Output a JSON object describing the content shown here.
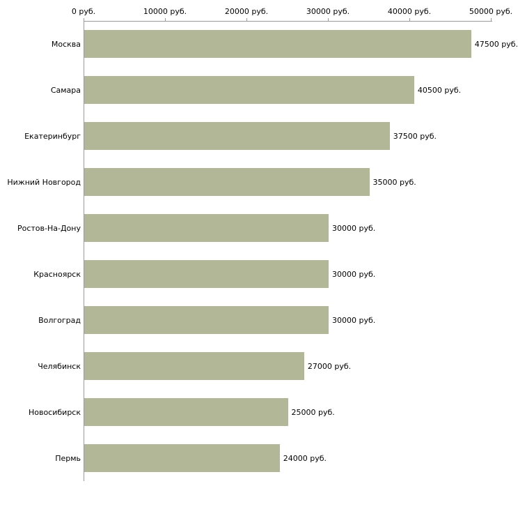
{
  "chart_data": {
    "type": "bar",
    "orientation": "horizontal",
    "title": "",
    "xlabel": "",
    "ylabel": "",
    "categories": [
      "Москва",
      "Самара",
      "Екатеринбург",
      "Нижний Новгород",
      "Ростов-На-Дону",
      "Красноярск",
      "Волгоград",
      "Челябинск",
      "Новосибирск",
      "Пермь"
    ],
    "values": [
      47500,
      40500,
      37500,
      35000,
      30000,
      30000,
      30000,
      27000,
      25000,
      24000
    ],
    "value_labels": [
      "47500 руб.",
      "40500 руб.",
      "37500 руб.",
      "35000 руб.",
      "30000 руб.",
      "30000 руб.",
      "30000 руб.",
      "27000 руб.",
      "25000 руб.",
      "24000 руб."
    ],
    "x_ticks": [
      0,
      10000,
      20000,
      30000,
      40000,
      50000
    ],
    "x_tick_labels": [
      "0 руб.",
      "10000 руб.",
      "20000 руб.",
      "30000 руб.",
      "40000 руб.",
      "50000 руб."
    ],
    "xlim": [
      0,
      50000
    ],
    "axis_position": "top",
    "grid": false,
    "legend": false,
    "colors": {
      "bar": "#b2b897",
      "axis": "#9a9a9a",
      "text": "#000000",
      "background": "#ffffff"
    }
  }
}
